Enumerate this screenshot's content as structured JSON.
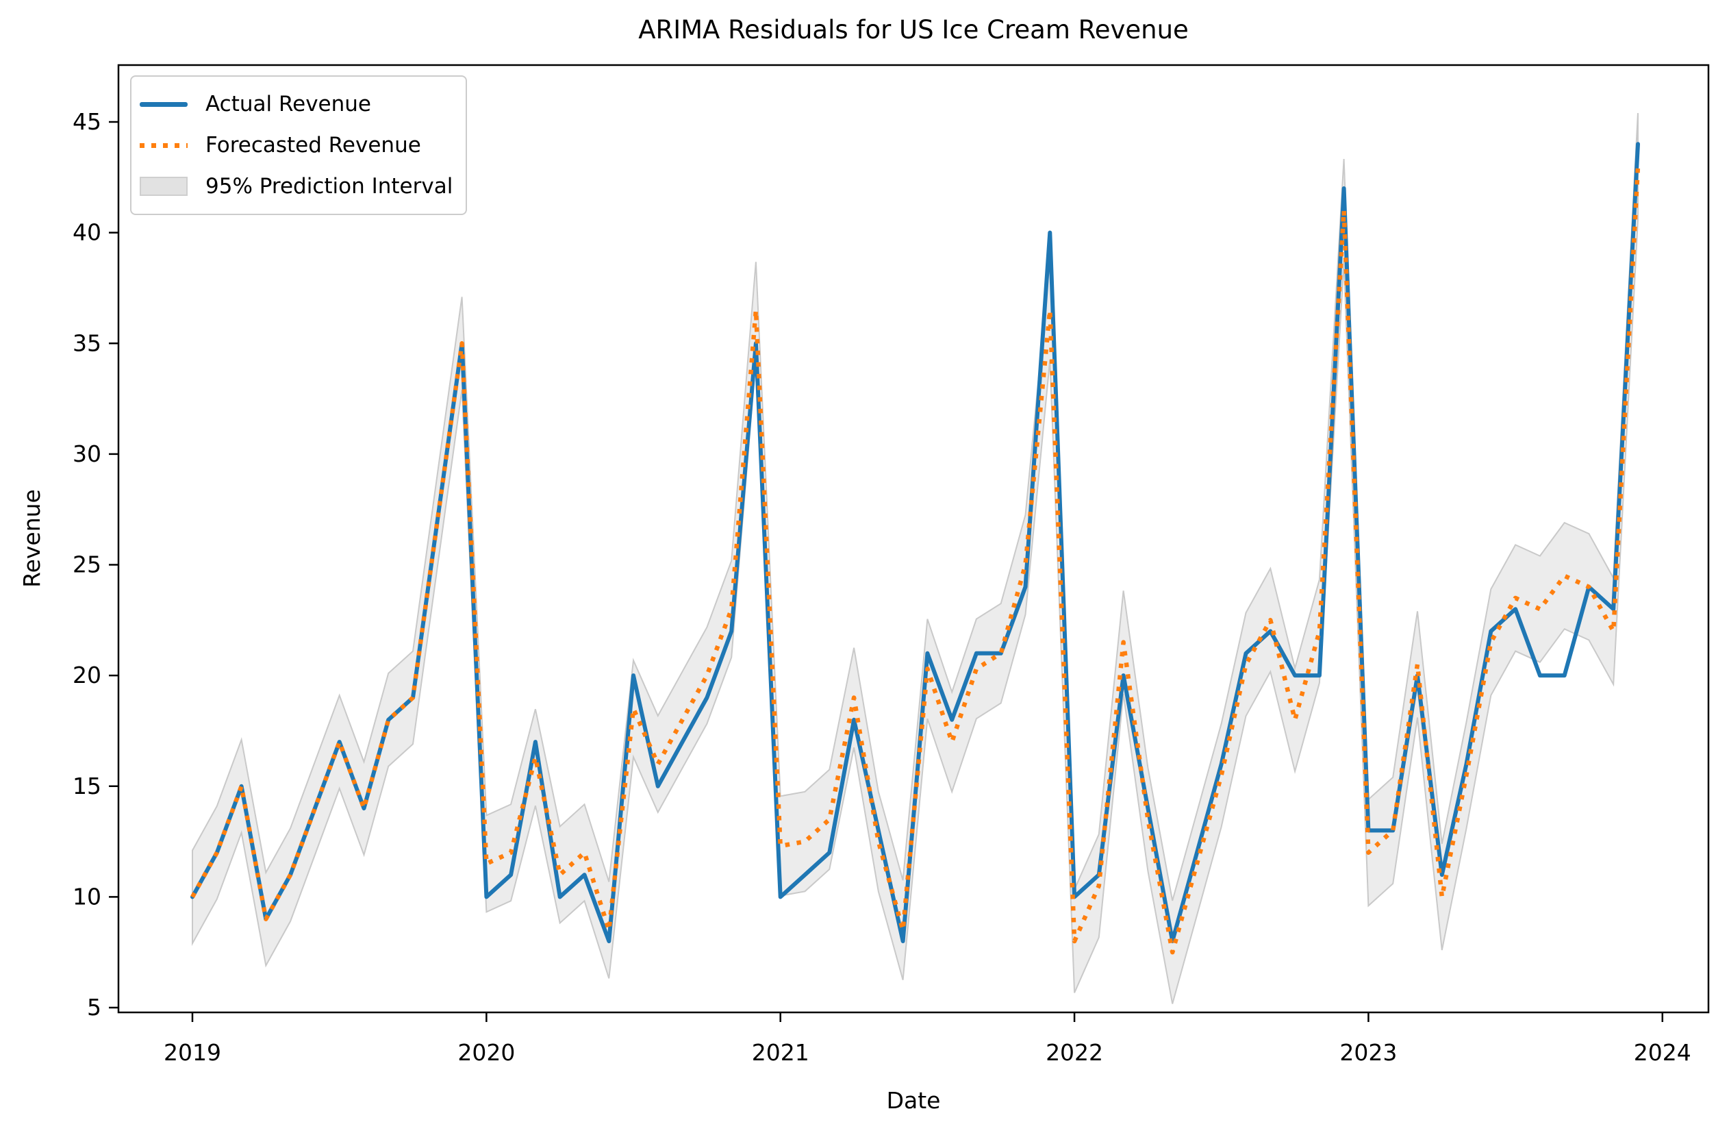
{
  "figure": {
    "title": "ARIMA Residuals for US Ice Cream Revenue",
    "xlabel": "Date",
    "ylabel": "Revenue"
  },
  "legend": {
    "actual": "Actual Revenue",
    "forecast": "Forecasted Revenue",
    "interval": "95% Prediction Interval"
  },
  "chart_data": {
    "type": "line",
    "title": "ARIMA Residuals for US Ice Cream Revenue",
    "xlabel": "Date",
    "ylabel": "Revenue",
    "x_start": "2019-01",
    "x_end": "2023-12",
    "x_frequency": "monthly",
    "x_tick_labels": [
      "2019",
      "2020",
      "2021",
      "2022",
      "2023",
      "2024"
    ],
    "y_tick_labels": [
      "5",
      "10",
      "15",
      "20",
      "25",
      "30",
      "35",
      "40",
      "45"
    ],
    "ylim": [
      3.6,
      47.5
    ],
    "grid": false,
    "legend_position": "upper-left",
    "series": [
      {
        "name": "Actual Revenue",
        "style": "solid",
        "color": "#1f77b4",
        "values": [
          10,
          12,
          15,
          9,
          11,
          14,
          17,
          14,
          18,
          19,
          27,
          35,
          10,
          11,
          17,
          10,
          11,
          8,
          20,
          15,
          17,
          19,
          22,
          35,
          10,
          11,
          12,
          18,
          13,
          8,
          21,
          18,
          21,
          21,
          24,
          40,
          10,
          11,
          20,
          14,
          8,
          12,
          16,
          21,
          22,
          20,
          20,
          42,
          13,
          13,
          20,
          11,
          16,
          22,
          23,
          20,
          20,
          24,
          23,
          44
        ]
      },
      {
        "name": "Forecasted Revenue",
        "style": "dotted",
        "color": "#ff7f0e",
        "values": [
          10,
          12,
          15,
          9,
          11,
          14,
          17,
          14,
          18,
          19,
          27,
          35,
          11.5,
          12,
          16.3,
          11,
          12,
          8.5,
          18.5,
          16,
          18,
          20,
          23,
          36.5,
          12.3,
          12.5,
          13.5,
          19,
          12.5,
          8.5,
          20.3,
          17,
          20.3,
          21,
          25,
          36.5,
          8,
          10.5,
          21.5,
          13.5,
          7.5,
          11.5,
          15.5,
          20.5,
          22.5,
          18,
          22,
          41,
          12,
          13,
          20.5,
          10,
          15.5,
          21.5,
          23.5,
          23,
          24.5,
          24,
          22,
          43
        ]
      }
    ],
    "band": {
      "name": "95% Prediction Interval",
      "fill": "#e0e0e0",
      "edge": "#c9c9c9",
      "follows": "Forecasted Revenue",
      "halfwidth_by_year": [
        2.1,
        2.18,
        2.25,
        2.33,
        2.4
      ]
    },
    "colors": {
      "actual": "#1f77b4",
      "forecast": "#ff7f0e",
      "band_fill": "#e0e0e0",
      "band_edge": "#c9c9c9",
      "axis": "#000000"
    }
  }
}
